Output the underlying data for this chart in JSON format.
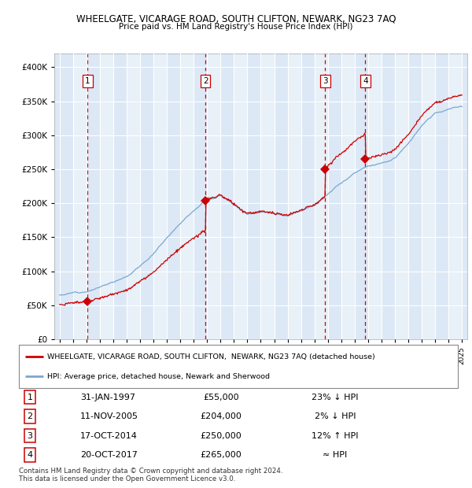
{
  "title": "WHEELGATE, VICARAGE ROAD, SOUTH CLIFTON, NEWARK, NG23 7AQ",
  "subtitle": "Price paid vs. HM Land Registry's House Price Index (HPI)",
  "xlim_start": 1994.6,
  "xlim_end": 2025.4,
  "ylim": [
    0,
    420000
  ],
  "yticks": [
    0,
    50000,
    100000,
    150000,
    200000,
    250000,
    300000,
    350000,
    400000
  ],
  "bg_color": "#dce8f5",
  "sale_color": "#cc0000",
  "hpi_color": "#7aa8d0",
  "dashed_line_color": "#cc0000",
  "legend_sale_label": "WHEELGATE, VICARAGE ROAD, SOUTH CLIFTON,  NEWARK, NG23 7AQ (detached house)",
  "legend_hpi_label": "HPI: Average price, detached house, Newark and Sherwood",
  "annotations": [
    {
      "num": 1,
      "x_year": 1997.08,
      "label": "1",
      "date": "31-JAN-1997",
      "price": "£55,000",
      "hpi_rel": "23% ↓ HPI"
    },
    {
      "num": 2,
      "x_year": 2005.87,
      "label": "2",
      "date": "11-NOV-2005",
      "price": "£204,000",
      "hpi_rel": "2% ↓ HPI"
    },
    {
      "num": 3,
      "x_year": 2014.8,
      "label": "3",
      "date": "17-OCT-2014",
      "price": "£250,000",
      "hpi_rel": "12% ↑ HPI"
    },
    {
      "num": 4,
      "x_year": 2017.8,
      "label": "4",
      "date": "20-OCT-2017",
      "price": "£265,000",
      "hpi_rel": "≈ HPI"
    }
  ],
  "sale_points_y": [
    55000,
    204000,
    250000,
    265000
  ],
  "footer": "Contains HM Land Registry data © Crown copyright and database right 2024.\nThis data is licensed under the Open Government Licence v3.0.",
  "hpi_base": [
    65000,
    68000,
    72000,
    78000,
    85000,
    95000,
    110000,
    128000,
    152000,
    175000,
    196000,
    212000,
    218000,
    207000,
    192000,
    196000,
    191000,
    186000,
    191000,
    201000,
    217000,
    232000,
    247000,
    257000,
    262000,
    267000,
    288000,
    312000,
    332000,
    337000,
    342000
  ],
  "hpi_base_years": [
    1995,
    1996,
    1997,
    1998,
    1999,
    2000,
    2001,
    2002,
    2003,
    2004,
    2005,
    2006,
    2007,
    2008,
    2009,
    2010,
    2011,
    2012,
    2013,
    2014,
    2015,
    2016,
    2017,
    2018,
    2019,
    2020,
    2021,
    2022,
    2023,
    2024,
    2025
  ]
}
